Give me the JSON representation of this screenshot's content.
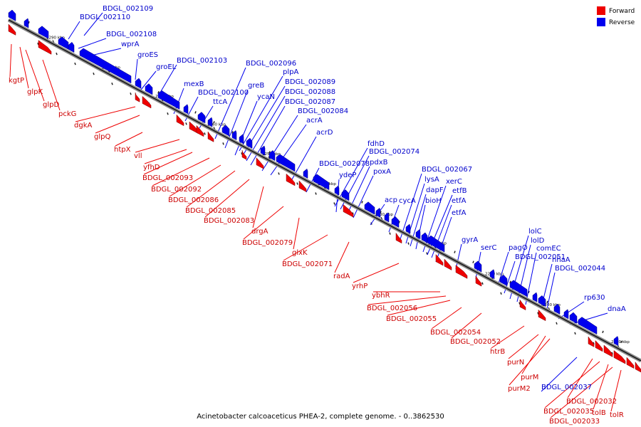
{
  "caption": "Acinetobacter calcoaceticus PHEA-2, complete genome. - 0..3862530",
  "legend": [
    {
      "label": "Forward",
      "color": "#ee0000"
    },
    {
      "label": "Reverse",
      "color": "#0000ee"
    }
  ],
  "colors": {
    "forward": "#ee0000",
    "reverse": "#0000ee",
    "forward_label": "#cc0000",
    "reverse_label": "#0000cc"
  },
  "ticks": [
    "2290 kbp",
    "2280 kbp",
    "2270 kbp",
    "2260 kbp",
    "2250 kbp",
    "2240 kbp",
    "2230 kbp",
    "2220 kbp",
    "2210 kbp",
    "2200 kbp",
    "2190 kbp"
  ],
  "reverse_genes": [
    "BDGL_002109",
    "BDGL_002110",
    "BDGL_002108",
    "wprA",
    "groES",
    "groEL",
    "BDGL_002103",
    "mexB",
    "BDGL_002100",
    "ttcA",
    "BDGL_002096",
    "greB",
    "ycaN",
    "plpA",
    "BDGL_002089",
    "BDGL_002088",
    "BDGL_002087",
    "BDGL_002084",
    "acrA",
    "acrD",
    "fdhD",
    "BDGL_002074",
    "BDGL_002078",
    "ydeP",
    "pdxB",
    "poxA",
    "acp",
    "cycA",
    "BDGL_002067",
    "lysA",
    "dapF",
    "bioH",
    "xerC",
    "etfB",
    "etfA",
    "etfA",
    "gyrA",
    "serC",
    "pagO",
    "BDGL_002051",
    "lolC",
    "lolD",
    "comEC",
    "nhaA",
    "BDGL_002044",
    "rp630",
    "dnaA",
    "BDGL_002037"
  ],
  "forward_genes": [
    "kgtP",
    "glpK",
    "glpD",
    "pckG",
    "dgkA",
    "glpQ",
    "htpX",
    "vll",
    "yfhD",
    "BDGL_002093",
    "BDGL_002092",
    "BDGL_002086",
    "BDGL_002085",
    "BDGL_002083",
    "drgA",
    "BDGL_002079",
    "glxK",
    "BDGL_002071",
    "radA",
    "yrhP",
    "ybhR",
    "BDGL_002056",
    "BDGL_002055",
    "BDGL_002054",
    "BDGL_002052",
    "htrB",
    "purN",
    "purM",
    "purM2",
    "BDGL_002032",
    "BDGL_002035",
    "tolB",
    "tolR",
    "BDGL_002033"
  ]
}
